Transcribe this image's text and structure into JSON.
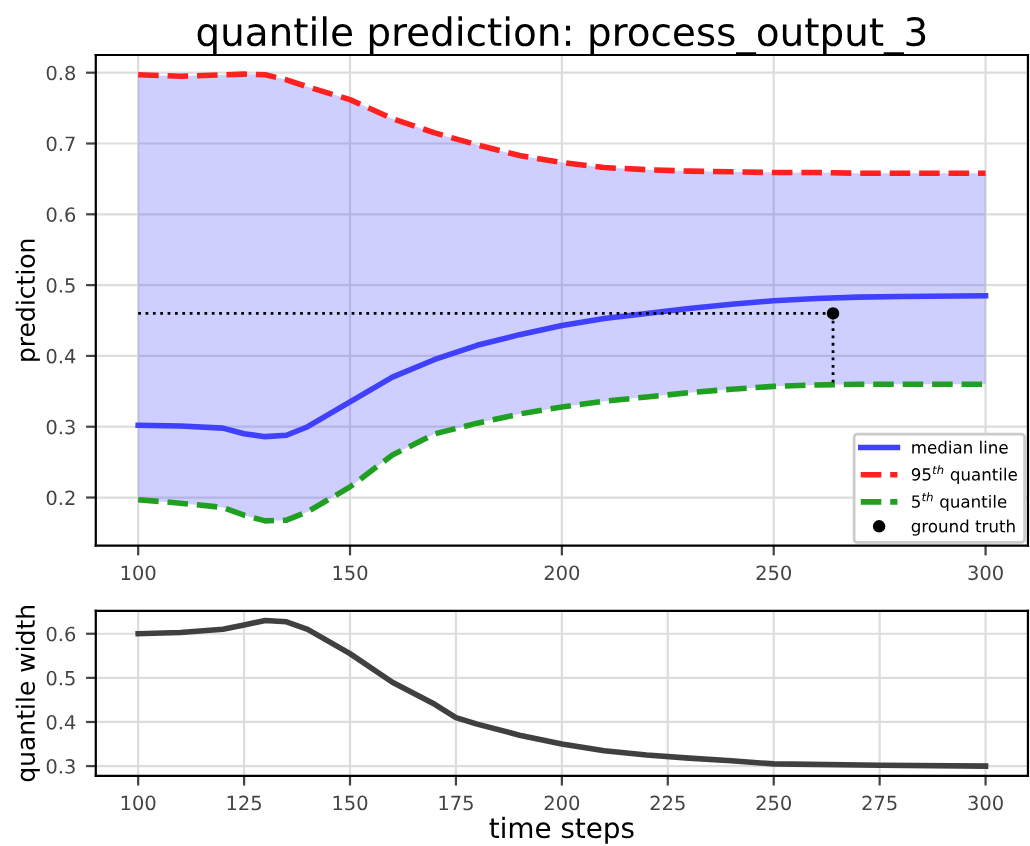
{
  "chart_data": [
    {
      "type": "line",
      "title": "quantile prediction: process_output_3",
      "ylabel": "prediction",
      "xlim": [
        90,
        310
      ],
      "xticks": [
        100,
        150,
        200,
        250,
        300
      ],
      "ylim": [
        0.132,
        0.825
      ],
      "yticks": [
        0.2,
        0.3,
        0.4,
        0.5,
        0.6,
        0.7,
        0.8
      ],
      "grid": true,
      "legend": "bottom right",
      "series": [
        {
          "name": "median line",
          "color": "#4040ff",
          "line_style": "solid",
          "x": [
            100,
            110,
            120,
            125,
            130,
            135,
            140,
            150,
            160,
            170,
            180,
            190,
            200,
            210,
            220,
            230,
            240,
            250,
            260,
            270,
            280,
            300
          ],
          "values": [
            0.302,
            0.301,
            0.298,
            0.29,
            0.286,
            0.288,
            0.3,
            0.335,
            0.37,
            0.395,
            0.415,
            0.43,
            0.443,
            0.453,
            0.46,
            0.467,
            0.473,
            0.478,
            0.481,
            0.483,
            0.484,
            0.485
          ],
          "lower": [
            0.197,
            0.192,
            0.186,
            0.175,
            0.167,
            0.168,
            0.18,
            0.215,
            0.26,
            0.29,
            0.305,
            0.318,
            0.328,
            0.336,
            0.342,
            0.348,
            0.353,
            0.357,
            0.359,
            0.36,
            0.36,
            0.36
          ],
          "upper": [
            0.797,
            0.795,
            0.797,
            0.798,
            0.797,
            0.79,
            0.78,
            0.762,
            0.735,
            0.715,
            0.698,
            0.683,
            0.673,
            0.666,
            0.663,
            0.661,
            0.66,
            0.659,
            0.659,
            0.658,
            0.658,
            0.658
          ]
        },
        {
          "name": "95$^{th}$ quantile",
          "color": "#ff2020",
          "line_style": "dashed",
          "x": [
            100,
            110,
            120,
            125,
            130,
            135,
            140,
            150,
            160,
            170,
            180,
            190,
            200,
            210,
            220,
            230,
            240,
            250,
            260,
            270,
            280,
            300
          ],
          "values": [
            0.797,
            0.795,
            0.797,
            0.798,
            0.797,
            0.79,
            0.78,
            0.762,
            0.735,
            0.715,
            0.698,
            0.683,
            0.673,
            0.666,
            0.663,
            0.661,
            0.66,
            0.659,
            0.659,
            0.658,
            0.658,
            0.658
          ]
        },
        {
          "name": "5$^{th}$ quantile",
          "color": "#20a020",
          "line_style": "dashed",
          "x": [
            100,
            110,
            120,
            125,
            130,
            135,
            140,
            150,
            160,
            170,
            180,
            190,
            200,
            210,
            220,
            230,
            240,
            250,
            260,
            270,
            280,
            300
          ],
          "values": [
            0.197,
            0.192,
            0.186,
            0.175,
            0.167,
            0.168,
            0.18,
            0.215,
            0.26,
            0.29,
            0.305,
            0.318,
            0.328,
            0.336,
            0.342,
            0.348,
            0.353,
            0.357,
            0.359,
            0.36,
            0.36,
            0.36
          ]
        },
        {
          "color": "#000000",
          "line_style": "dotted",
          "x": [
            100,
            264
          ],
          "values": [
            0.46,
            0.46
          ]
        },
        {
          "color": "#000000",
          "line_style": "dotted",
          "x": [
            264,
            264
          ],
          "values": [
            0.46,
            0.36
          ]
        },
        {
          "name": "ground truth",
          "type": "scatter",
          "color": "#000000",
          "marker": "circle",
          "x": [
            264
          ],
          "values": [
            0.46
          ]
        }
      ]
    },
    {
      "type": "line",
      "xlabel": "time steps",
      "ylabel": "quantile width",
      "xlim": [
        90,
        310
      ],
      "xticks": [
        100,
        125,
        150,
        175,
        200,
        225,
        250,
        275,
        300
      ],
      "ylim": [
        0.278,
        0.652
      ],
      "yticks": [
        0.3,
        0.4,
        0.5,
        0.6
      ],
      "grid": true,
      "series": [
        {
          "color": "#404040",
          "line_style": "solid",
          "x": [
            100,
            110,
            120,
            125,
            130,
            135,
            140,
            150,
            160,
            170,
            175,
            180,
            190,
            200,
            210,
            220,
            230,
            240,
            250,
            275,
            300
          ],
          "values": [
            0.6,
            0.603,
            0.61,
            0.62,
            0.63,
            0.627,
            0.61,
            0.555,
            0.49,
            0.44,
            0.41,
            0.395,
            0.37,
            0.35,
            0.335,
            0.325,
            0.318,
            0.312,
            0.305,
            0.302,
            0.3
          ]
        }
      ]
    }
  ]
}
